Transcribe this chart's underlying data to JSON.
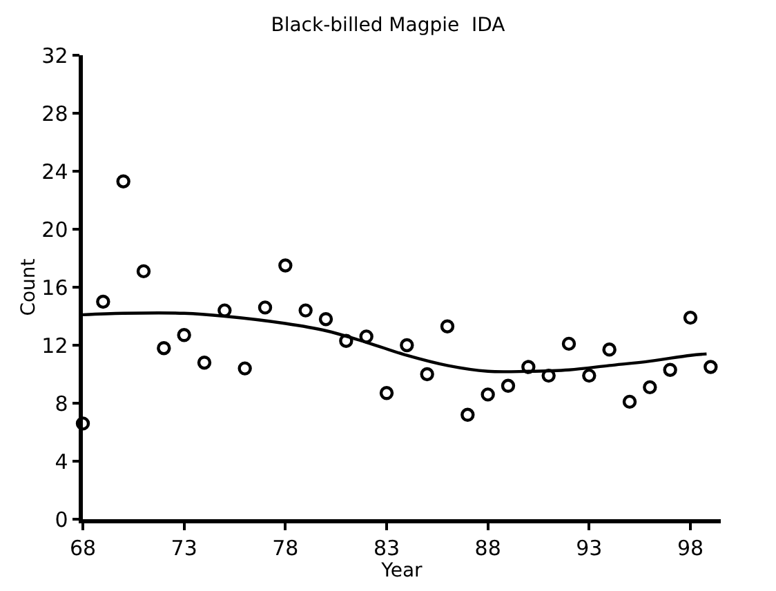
{
  "chart_data": {
    "type": "scatter",
    "title": "Black-billed Magpie  IDA",
    "xlabel": "Year",
    "ylabel": "Count",
    "x": [
      68,
      69,
      70,
      71,
      72,
      73,
      74,
      75,
      76,
      77,
      78,
      79,
      80,
      81,
      82,
      83,
      84,
      85,
      86,
      87,
      88,
      89,
      90,
      91,
      92,
      93,
      94,
      95,
      96,
      97,
      98,
      99
    ],
    "series": [
      {
        "color": "#000000",
        "marker": "circle",
        "values": [
          6.6,
          15.0,
          23.3,
          17.1,
          11.8,
          12.7,
          10.8,
          14.4,
          10.4,
          14.6,
          17.5,
          14.4,
          13.8,
          12.3,
          12.6,
          8.7,
          12.0,
          10.0,
          13.3,
          7.2,
          8.6,
          9.2,
          10.5,
          9.9,
          12.1,
          9.9,
          11.7,
          8.1,
          9.1,
          10.3,
          13.9,
          10.5
        ]
      },
      {
        "type": "line",
        "color": "#000000",
        "marker": "none",
        "line_style": "solid",
        "x": [
          68,
          70,
          73,
          75,
          78,
          80,
          82,
          84,
          86,
          88,
          90,
          92,
          94,
          96,
          98,
          98.8
        ],
        "values": [
          14.1,
          14.2,
          14.2,
          14.0,
          13.5,
          13.0,
          12.2,
          11.3,
          10.6,
          10.2,
          10.2,
          10.3,
          10.6,
          10.9,
          11.3,
          11.4
        ]
      }
    ],
    "xlim": [
      68,
      99.5
    ],
    "xticks": [
      68,
      73,
      78,
      83,
      88,
      93,
      98
    ],
    "ylim": [
      0,
      32
    ],
    "yticks": [
      0,
      4,
      8,
      12,
      16,
      20,
      24,
      28,
      32
    ]
  }
}
